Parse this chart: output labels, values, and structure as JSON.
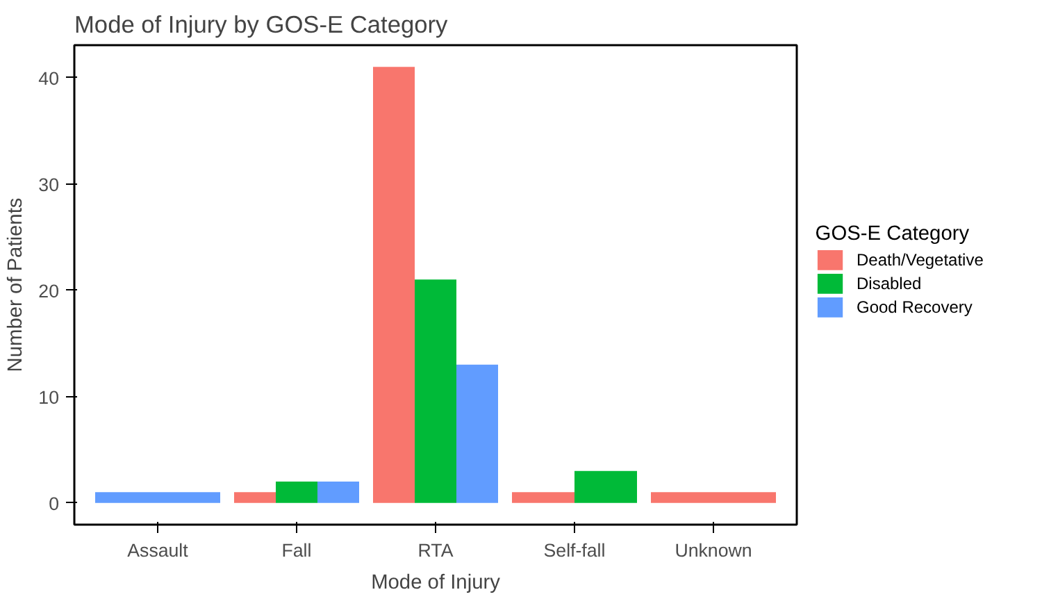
{
  "chart_data": {
    "type": "bar",
    "title": "Mode of Injury by GOS-E Category",
    "xlabel": "Mode of Injury",
    "ylabel": "Number of Patients",
    "legend_title": "GOS-E Category",
    "categories": [
      "Assault",
      "Fall",
      "RTA",
      "Self-fall",
      "Unknown"
    ],
    "series": [
      {
        "name": "Death/Vegetative",
        "color": "#f8766d",
        "values": [
          null,
          1,
          41,
          1,
          1
        ]
      },
      {
        "name": "Disabled",
        "color": "#00ba38",
        "values": [
          null,
          2,
          21,
          3,
          null
        ]
      },
      {
        "name": "Good Recovery",
        "color": "#619cff",
        "values": [
          1,
          2,
          13,
          null,
          null
        ]
      }
    ],
    "ylim": [
      -2.05,
      43.05
    ],
    "yticks": [
      0,
      10,
      20,
      30,
      40
    ],
    "grid": false,
    "legend": "right"
  }
}
